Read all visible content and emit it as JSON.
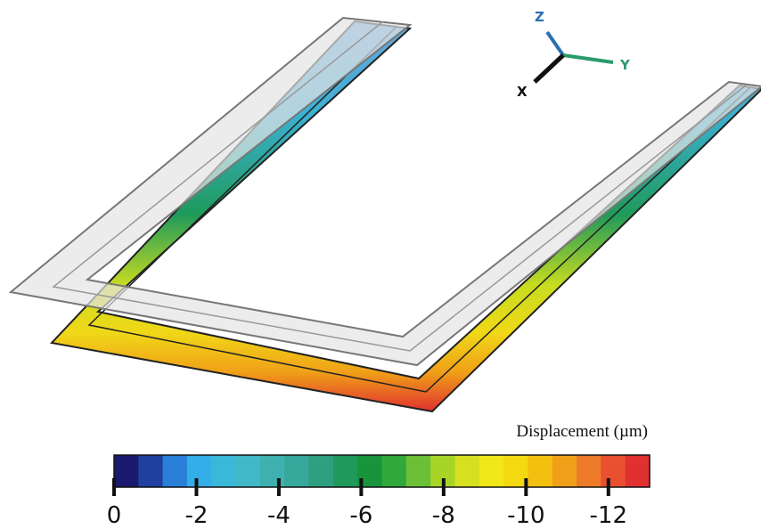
{
  "axes_triad": {
    "z": "Z",
    "y": "Y",
    "x": "X"
  },
  "colorbar": {
    "label": "Displacement (µm)",
    "lim": [
      0,
      -13
    ],
    "ticks": [
      0,
      -2,
      -4,
      -6,
      -8,
      -10,
      -12
    ],
    "colors": [
      "#1a1a6e",
      "#2040a0",
      "#2a7fd8",
      "#33aee8",
      "#3ab8d8",
      "#40b8c8",
      "#3fb0b0",
      "#36a89c",
      "#2ea080",
      "#1f9a5a",
      "#18943c",
      "#30a83a",
      "#6cc038",
      "#a8d428",
      "#d4e020",
      "#f0e818",
      "#f4d810",
      "#f4c010",
      "#f0a018",
      "#ec7a28",
      "#e85030",
      "#e03030"
    ]
  }
}
